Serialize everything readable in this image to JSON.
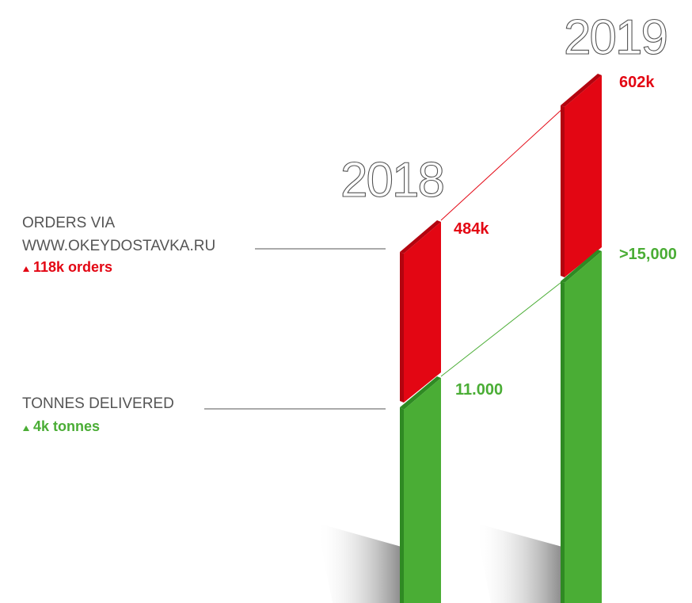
{
  "years": [
    "2018",
    "2019"
  ],
  "orders": {
    "label_lines": [
      "ORDERS VIA",
      "WWW.OKEYDOSTAVKA.RU"
    ],
    "change": "118k orders",
    "value_2018": "484k",
    "value_2019": "602k"
  },
  "tonnes": {
    "label": "TONNES DELIVERED",
    "change": "4k tonnes",
    "value_2018": "11.000",
    "value_2019": ">15,000"
  }
}
